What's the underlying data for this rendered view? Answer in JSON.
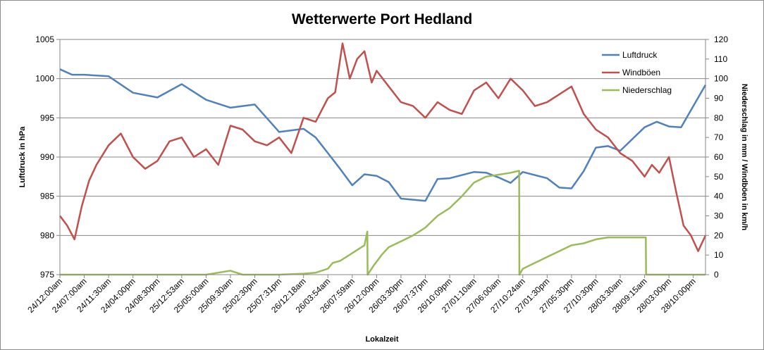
{
  "chart_data": {
    "type": "line",
    "title": "Wetterwerte Port Hedland",
    "xlabel": "Lokalzeit",
    "ylabel_left": "Luftdruck in hPa",
    "ylabel_right": "Niederschlag in mm / Windböen in km/h",
    "ylim_left": [
      975,
      1005
    ],
    "yticks_left": [
      "975",
      "980",
      "985",
      "990",
      "995",
      "1000",
      "1005"
    ],
    "ylim_right": [
      0,
      120
    ],
    "yticks_right": [
      "0",
      "10",
      "20",
      "30",
      "40",
      "50",
      "60",
      "70",
      "80",
      "90",
      "100",
      "110",
      "120"
    ],
    "x_categories": [
      "24/12:00am",
      "24/07:00am",
      "24/11:30am",
      "24/04:00pm",
      "24/08:30pm",
      "25/12:53am",
      "25/05:00am",
      "25/09:30am",
      "25/02:30pm",
      "25/07:31pm",
      "26/12:18am",
      "26/03:54am",
      "26/07:59am",
      "26/12:00pm",
      "26/03:30pm",
      "26/07:37pm",
      "26/10:09pm",
      "27/01:10am",
      "27/06:00am",
      "27/10:24am",
      "27/01:30pm",
      "27/05:30pm",
      "27/10:30pm",
      "28/03:30am",
      "28/09:15am",
      "28/03:00pm",
      "28/10:00pm"
    ],
    "grid": true,
    "legend_position": "top-right",
    "series": [
      {
        "name": "Luftdruck",
        "axis": "left",
        "color": "#4f81bd",
        "x": [
          0,
          0.5,
          1,
          2,
          3,
          4,
          5,
          6,
          7,
          8,
          9,
          10,
          10.5,
          11,
          11.5,
          12,
          12.5,
          13,
          13.5,
          14,
          15,
          15.5,
          16,
          17,
          17.5,
          18,
          18.5,
          19,
          20,
          20.5,
          21,
          21.5,
          22,
          22.5,
          23,
          23.5,
          24,
          24.5,
          25,
          25.5,
          26,
          26.5
        ],
        "values": [
          1001.2,
          1000.5,
          1000.5,
          1000.3,
          998.2,
          997.6,
          999.3,
          997.3,
          996.3,
          996.7,
          993.2,
          993.6,
          992.5,
          990.5,
          988.5,
          986.4,
          987.8,
          987.6,
          986.8,
          984.7,
          984.4,
          987.2,
          987.3,
          988.1,
          988.0,
          987.4,
          986.7,
          988.1,
          987.3,
          986.1,
          986.0,
          988.2,
          991.2,
          991.4,
          990.8,
          992.3,
          993.8,
          994.5,
          993.9,
          993.8,
          996.5,
          999.2
        ]
      },
      {
        "name": "Windböen",
        "axis": "right",
        "color": "#c0504d",
        "x": [
          0,
          0.3,
          0.6,
          0.9,
          1.2,
          1.5,
          2,
          2.5,
          3,
          3.5,
          4,
          4.5,
          5,
          5.5,
          6,
          6.5,
          7,
          7.5,
          8,
          8.5,
          9,
          9.5,
          10,
          10.5,
          11,
          11.3,
          11.6,
          11.9,
          12.2,
          12.5,
          12.8,
          13,
          13.5,
          14,
          14.5,
          15,
          15.5,
          16,
          16.5,
          17,
          17.5,
          18,
          18.5,
          19,
          19.5,
          20,
          20.5,
          21,
          21.5,
          22,
          22.5,
          23,
          23.5,
          24,
          24.3,
          24.6,
          25,
          25.3,
          25.6,
          25.9,
          26.2,
          26.5
        ],
        "values": [
          30,
          25,
          18,
          35,
          48,
          56,
          66,
          72,
          60,
          54,
          58,
          68,
          70,
          60,
          64,
          56,
          76,
          74,
          68,
          66,
          70,
          62,
          80,
          78,
          90,
          93,
          118,
          100,
          110,
          114,
          98,
          104,
          96,
          88,
          86,
          80,
          88,
          84,
          82,
          94,
          98,
          90,
          100,
          94,
          86,
          88,
          92,
          96,
          82,
          74,
          70,
          62,
          58,
          50,
          56,
          52,
          60,
          42,
          25,
          20,
          12,
          20
        ]
      },
      {
        "name": "Niederschlag",
        "axis": "right",
        "color": "#9bbb59",
        "x": [
          0,
          6,
          6.5,
          7,
          7.5,
          8,
          9,
          10,
          10.5,
          11,
          11.2,
          11.5,
          12,
          12.5,
          12.62,
          12.63,
          12.9,
          13.2,
          13.5,
          14,
          14.5,
          15,
          15.5,
          16,
          16.5,
          17,
          17.5,
          18,
          18.5,
          18.85,
          18.86,
          19,
          19.5,
          20,
          20.5,
          21,
          21.5,
          22,
          22.5,
          23,
          23.5,
          24,
          24.05,
          24.06,
          26.5
        ],
        "values": [
          0,
          0,
          1,
          2,
          0,
          0,
          0,
          0.5,
          1,
          3,
          6,
          7,
          11,
          15,
          22,
          0,
          5,
          10,
          14,
          17,
          20,
          24,
          30,
          34,
          40,
          47,
          50,
          51,
          52,
          53,
          0,
          3,
          6,
          9,
          12,
          15,
          16,
          18,
          19,
          19,
          19,
          19,
          19,
          0,
          0
        ]
      }
    ]
  }
}
